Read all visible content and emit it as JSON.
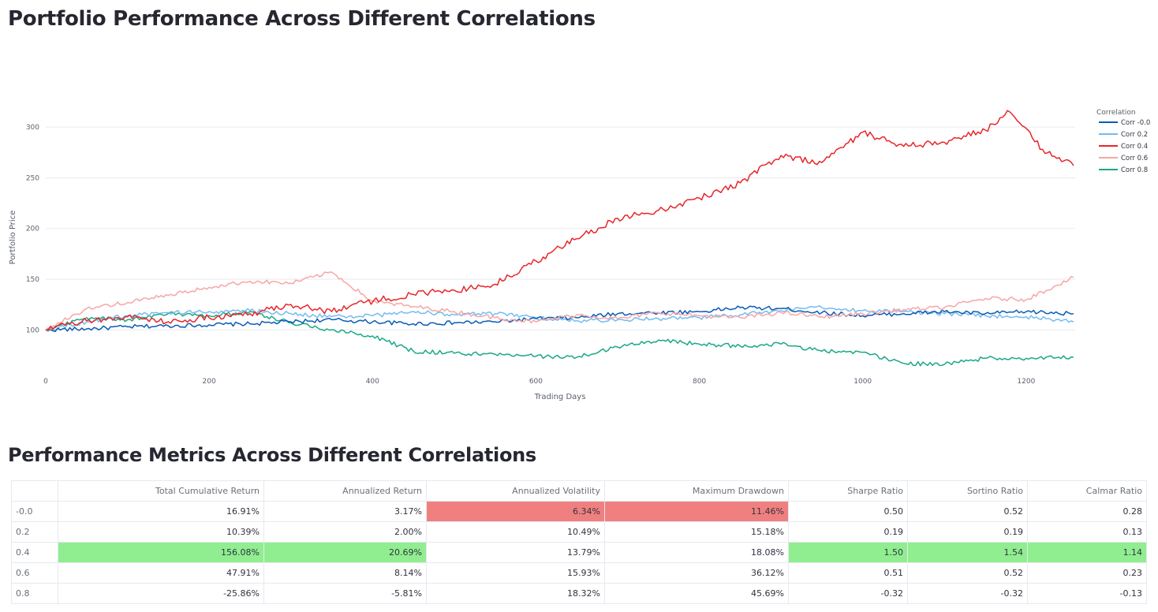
{
  "title": "Portfolio Performance Across Different Correlations",
  "metrics_title": "Performance Metrics Across Different Correlations",
  "colors": {
    "Corr -0.0": "#0a5cb5",
    "Corr 0.2": "#74bbf0",
    "Corr 0.4": "#e8262b",
    "Corr 0.6": "#f7a6a6",
    "Corr 0.8": "#1aa886",
    "highlight_low": "#f08080",
    "highlight_high": "#90ee90"
  },
  "chart_data": {
    "type": "line",
    "title": "",
    "xlabel": "Trading Days",
    "ylabel": "Portfolio Price",
    "xlim": [
      0,
      1260
    ],
    "ylim": [
      52,
      318
    ],
    "xticks": [
      0,
      200,
      400,
      600,
      800,
      1000,
      1200
    ],
    "yticks": [
      100,
      150,
      200,
      250,
      300
    ],
    "grid": true,
    "legend_title": "Correlation",
    "legend_position": "right",
    "series": [
      {
        "name": "Corr -0.0",
        "x": [
          0,
          50,
          100,
          150,
          200,
          250,
          300,
          350,
          400,
          450,
          500,
          550,
          600,
          650,
          700,
          750,
          800,
          850,
          900,
          950,
          1000,
          1050,
          1100,
          1150,
          1200,
          1258
        ],
        "values": [
          100,
          101,
          103,
          104,
          105,
          106,
          108,
          110,
          108,
          106,
          107,
          108,
          111,
          112,
          116,
          117,
          118,
          122,
          121,
          117,
          114,
          116,
          118,
          116,
          118,
          116
        ]
      },
      {
        "name": "Corr 0.2",
        "x": [
          0,
          50,
          100,
          150,
          200,
          250,
          300,
          350,
          400,
          450,
          500,
          550,
          600,
          650,
          700,
          750,
          800,
          850,
          900,
          950,
          1000,
          1050,
          1100,
          1150,
          1200,
          1258
        ],
        "values": [
          100,
          108,
          114,
          117,
          118,
          119,
          116,
          113,
          114,
          118,
          115,
          116,
          112,
          109,
          110,
          111,
          112,
          115,
          119,
          122,
          119,
          118,
          116,
          114,
          113,
          108
        ]
      },
      {
        "name": "Corr 0.4",
        "x": [
          0,
          50,
          100,
          150,
          200,
          250,
          300,
          350,
          380,
          450,
          500,
          550,
          600,
          650,
          700,
          750,
          800,
          850,
          900,
          950,
          1000,
          1050,
          1100,
          1150,
          1180,
          1220,
          1258
        ],
        "values": [
          100,
          109,
          113,
          108,
          112,
          116,
          125,
          118,
          126,
          135,
          139,
          145,
          168,
          190,
          210,
          218,
          230,
          245,
          272,
          265,
          295,
          281,
          285,
          297,
          315,
          278,
          262
        ]
      },
      {
        "name": "Corr 0.6",
        "x": [
          0,
          50,
          100,
          150,
          200,
          250,
          300,
          350,
          400,
          450,
          500,
          550,
          600,
          650,
          700,
          750,
          800,
          850,
          900,
          950,
          1000,
          1050,
          1100,
          1150,
          1200,
          1258
        ],
        "values": [
          100,
          121,
          127,
          134,
          142,
          148,
          146,
          157,
          128,
          123,
          118,
          112,
          108,
          115,
          111,
          117,
          114,
          112,
          117,
          113,
          116,
          120,
          122,
          131,
          130,
          152
        ]
      },
      {
        "name": "Corr 0.8",
        "x": [
          0,
          50,
          100,
          150,
          200,
          250,
          300,
          350,
          400,
          450,
          500,
          550,
          600,
          650,
          700,
          750,
          800,
          850,
          900,
          950,
          1000,
          1050,
          1100,
          1150,
          1200,
          1258
        ],
        "values": [
          100,
          112,
          110,
          116,
          114,
          118,
          107,
          100,
          94,
          79,
          77,
          76,
          74,
          73,
          83,
          90,
          86,
          84,
          86,
          79,
          78,
          67,
          66,
          72,
          72,
          73
        ]
      }
    ]
  },
  "metrics_table": {
    "columns": [
      "",
      "Total Cumulative Return",
      "Annualized Return",
      "Annualized Volatility",
      "Maximum Drawdown",
      "Sharpe Ratio",
      "Sortino Ratio",
      "Calmar Ratio"
    ],
    "rows": [
      {
        "label": "-0.0",
        "cells": [
          "16.91%",
          "3.17%",
          "6.34%",
          "11.46%",
          "0.50",
          "0.52",
          "0.28"
        ]
      },
      {
        "label": "0.2",
        "cells": [
          "10.39%",
          "2.00%",
          "10.49%",
          "15.18%",
          "0.19",
          "0.19",
          "0.13"
        ]
      },
      {
        "label": "0.4",
        "cells": [
          "156.08%",
          "20.69%",
          "13.79%",
          "18.08%",
          "1.50",
          "1.54",
          "1.14"
        ]
      },
      {
        "label": "0.6",
        "cells": [
          "47.91%",
          "8.14%",
          "15.93%",
          "36.12%",
          "0.51",
          "0.52",
          "0.23"
        ]
      },
      {
        "label": "0.8",
        "cells": [
          "-25.86%",
          "-5.81%",
          "18.32%",
          "45.69%",
          "-0.32",
          "-0.32",
          "-0.13"
        ]
      }
    ]
  }
}
